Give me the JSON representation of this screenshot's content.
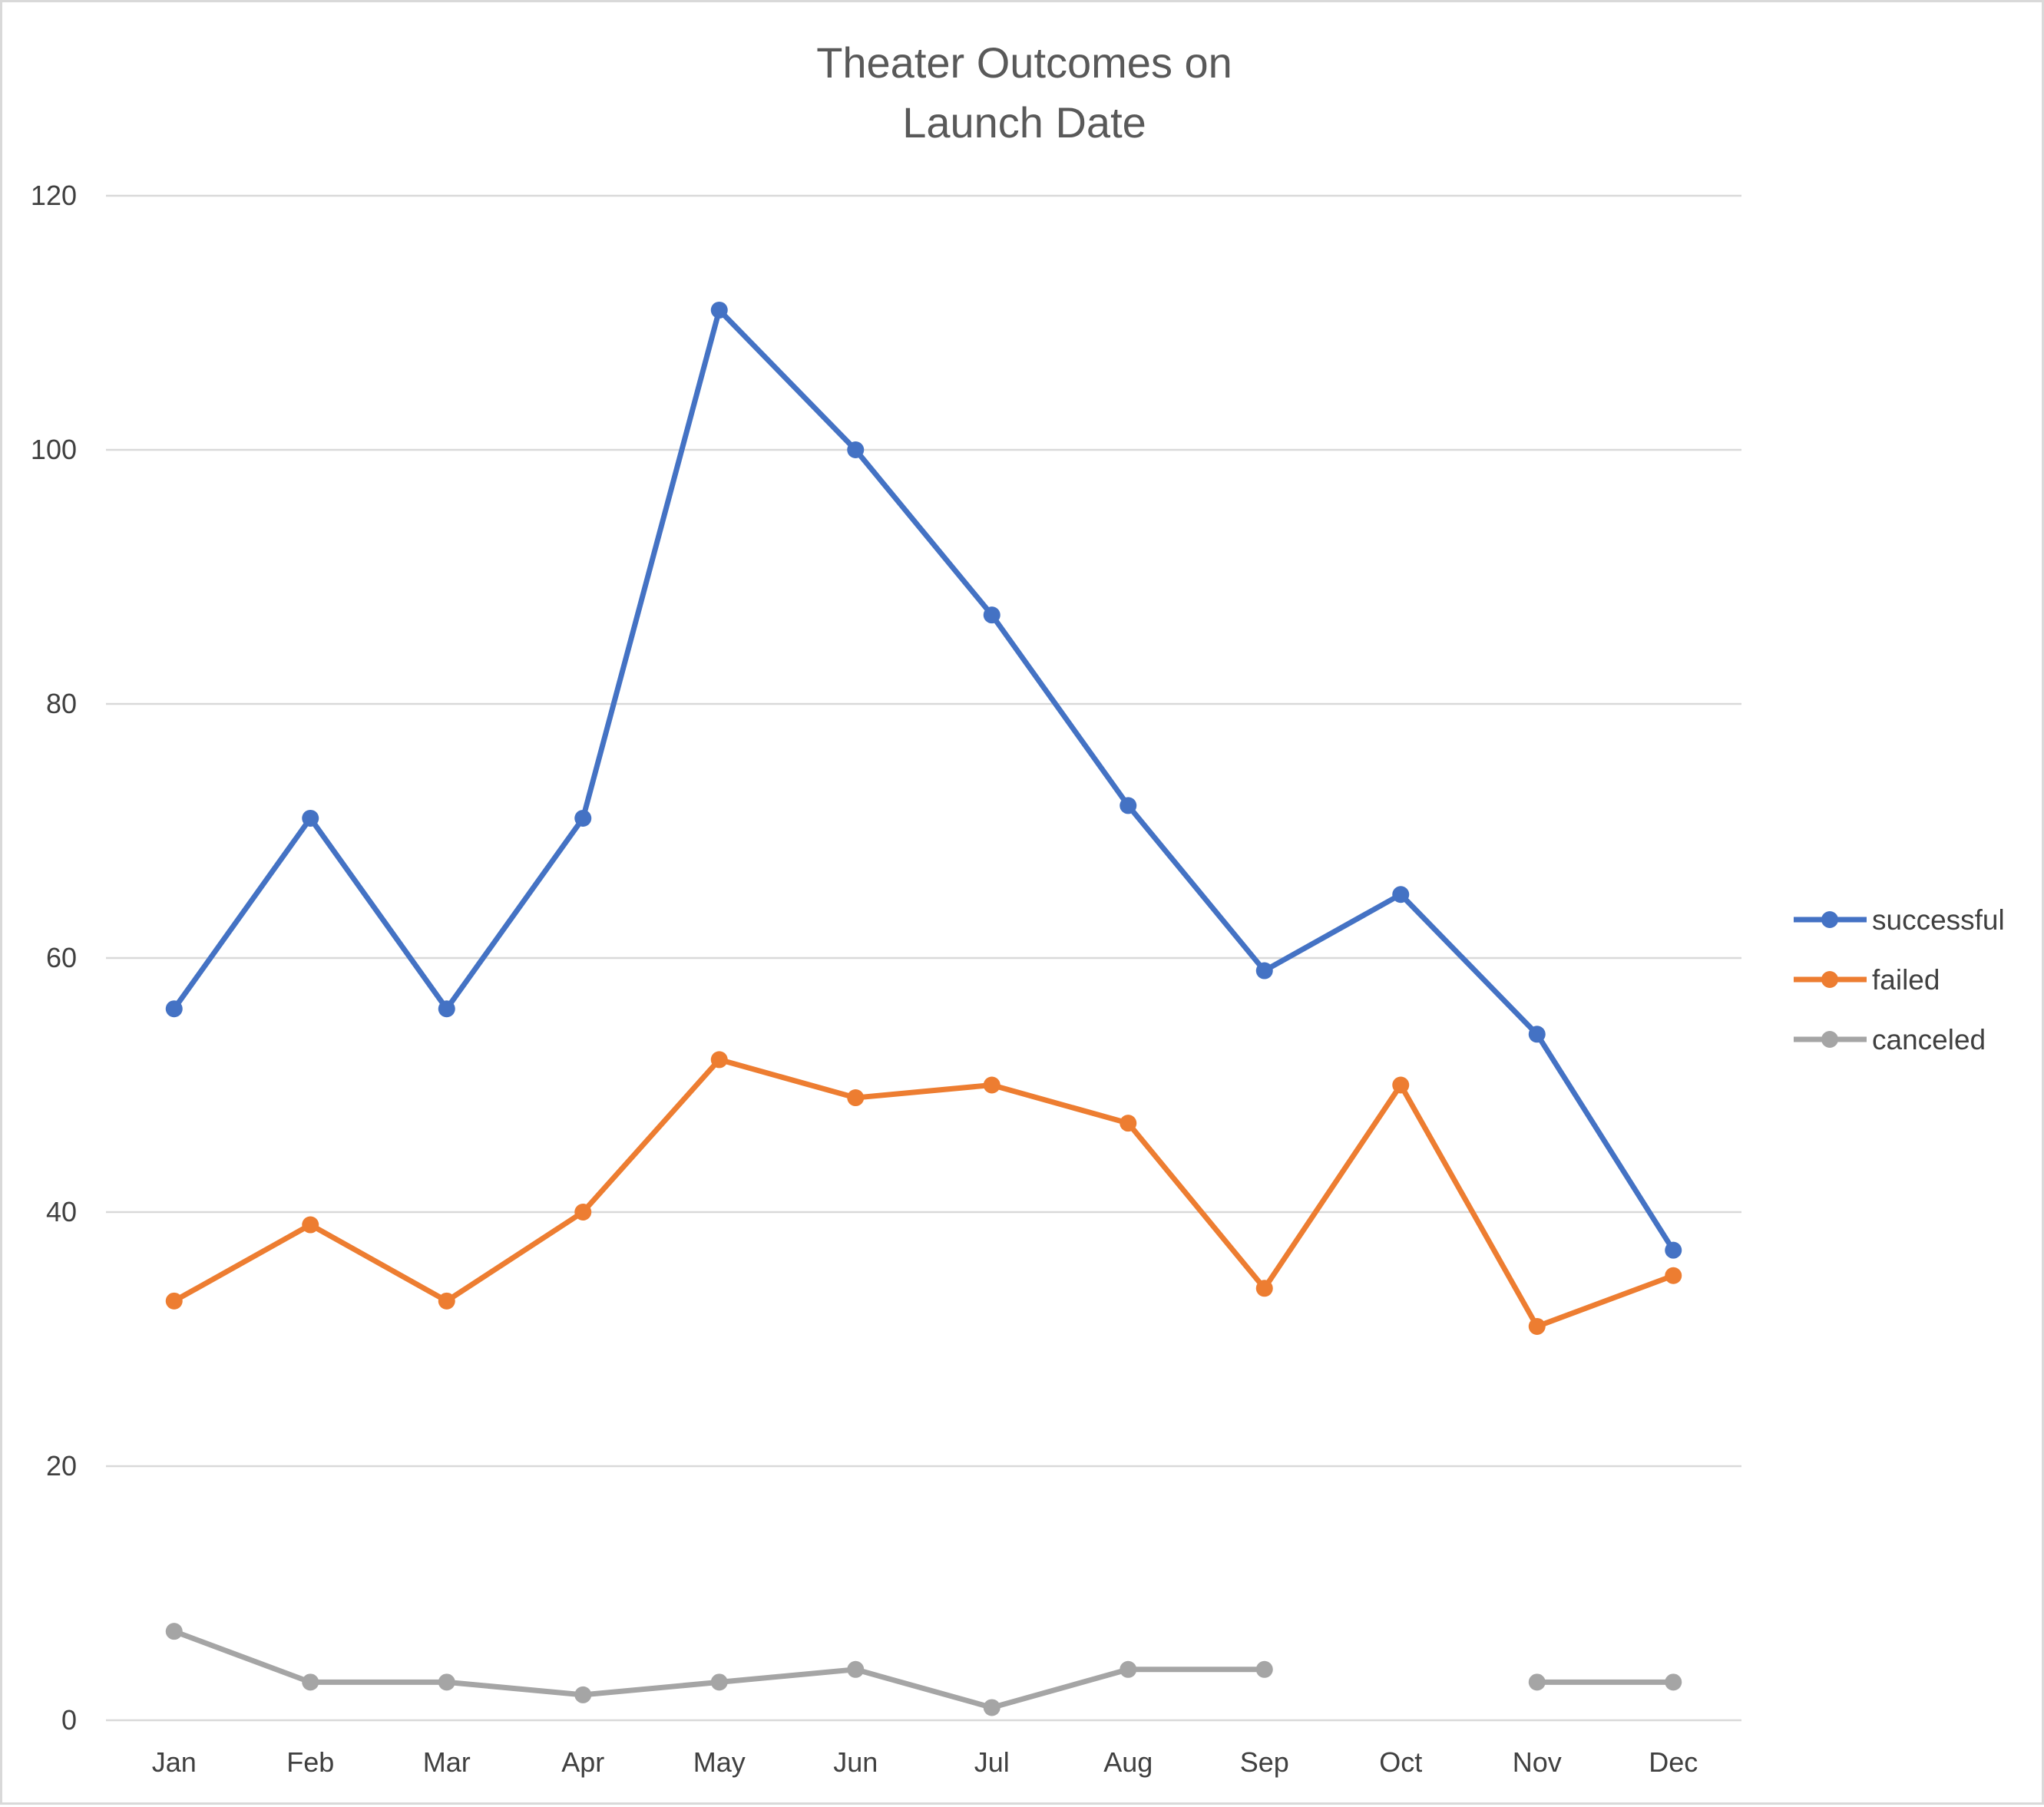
{
  "chart_data": {
    "type": "line",
    "title": "Theater Outcomes on Launch Date",
    "title_lines": [
      "Theater Outcomes on",
      "Launch Date"
    ],
    "xlabel": "",
    "ylabel": "",
    "categories": [
      "Jan",
      "Feb",
      "Mar",
      "Apr",
      "May",
      "Jun",
      "Jul",
      "Aug",
      "Sep",
      "Oct",
      "Nov",
      "Dec"
    ],
    "ylim": [
      0,
      120
    ],
    "yticks": [
      "0",
      "20",
      "40",
      "60",
      "80",
      "100",
      "120"
    ],
    "grid": true,
    "legend_position": "right",
    "series": [
      {
        "name": "successful",
        "color": "#4472C4",
        "values": [
          56,
          71,
          56,
          71,
          111,
          100,
          87,
          72,
          59,
          65,
          54,
          37
        ]
      },
      {
        "name": "failed",
        "color": "#ED7D31",
        "values": [
          33,
          39,
          33,
          40,
          52,
          49,
          50,
          47,
          34,
          50,
          31,
          35
        ]
      },
      {
        "name": "canceled",
        "color": "#A5A5A5",
        "values": [
          7,
          3,
          3,
          2,
          3,
          4,
          1,
          4,
          4,
          null,
          3,
          3
        ]
      }
    ]
  }
}
